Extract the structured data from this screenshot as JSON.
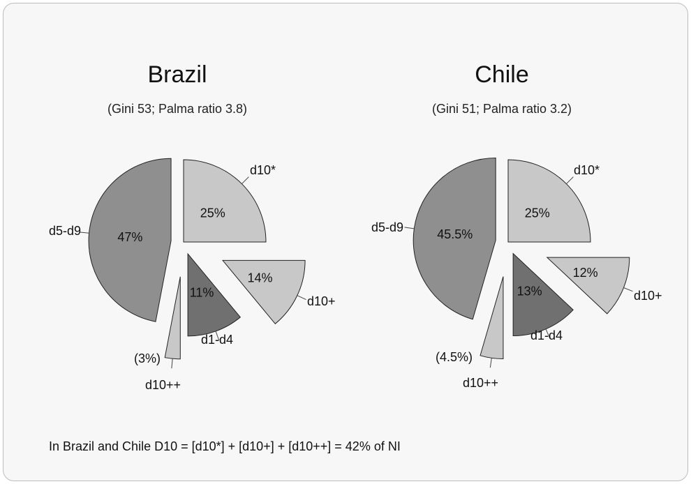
{
  "chart_data": [
    {
      "type": "pie",
      "title": "Brazil",
      "subtitle": "(Gini 53; Palma ratio 3.8)",
      "slices": [
        {
          "label": "d10*",
          "value": 25,
          "value_label": "25%",
          "color": "#c8c8c8"
        },
        {
          "label": "d10+",
          "value": 14,
          "value_label": "14%",
          "color": "#c8c8c8"
        },
        {
          "label": "d1-d4",
          "value": 11,
          "value_label": "11%",
          "color": "#707070"
        },
        {
          "label": "d10++",
          "value": 3,
          "value_label": "(3%)",
          "color": "#c8c8c8"
        },
        {
          "label": "d5-d9",
          "value": 47,
          "value_label": "47%",
          "color": "#8f8f8f"
        }
      ]
    },
    {
      "type": "pie",
      "title": "Chile",
      "subtitle": "(Gini 51; Palma ratio 3.2)",
      "slices": [
        {
          "label": "d10*",
          "value": 25,
          "value_label": "25%",
          "color": "#c8c8c8"
        },
        {
          "label": "d10+",
          "value": 12,
          "value_label": "12%",
          "color": "#c8c8c8"
        },
        {
          "label": "d1-d4",
          "value": 13,
          "value_label": "13%",
          "color": "#707070"
        },
        {
          "label": "d10++",
          "value": 4.5,
          "value_label": "(4.5%)",
          "color": "#c8c8c8"
        },
        {
          "label": "d5-d9",
          "value": 45.5,
          "value_label": "45.5%",
          "color": "#8f8f8f"
        }
      ]
    }
  ],
  "footnote": "In Brazil and Chile D10 = [d10*] + [d10+] + [d10++] = 42% of NI"
}
